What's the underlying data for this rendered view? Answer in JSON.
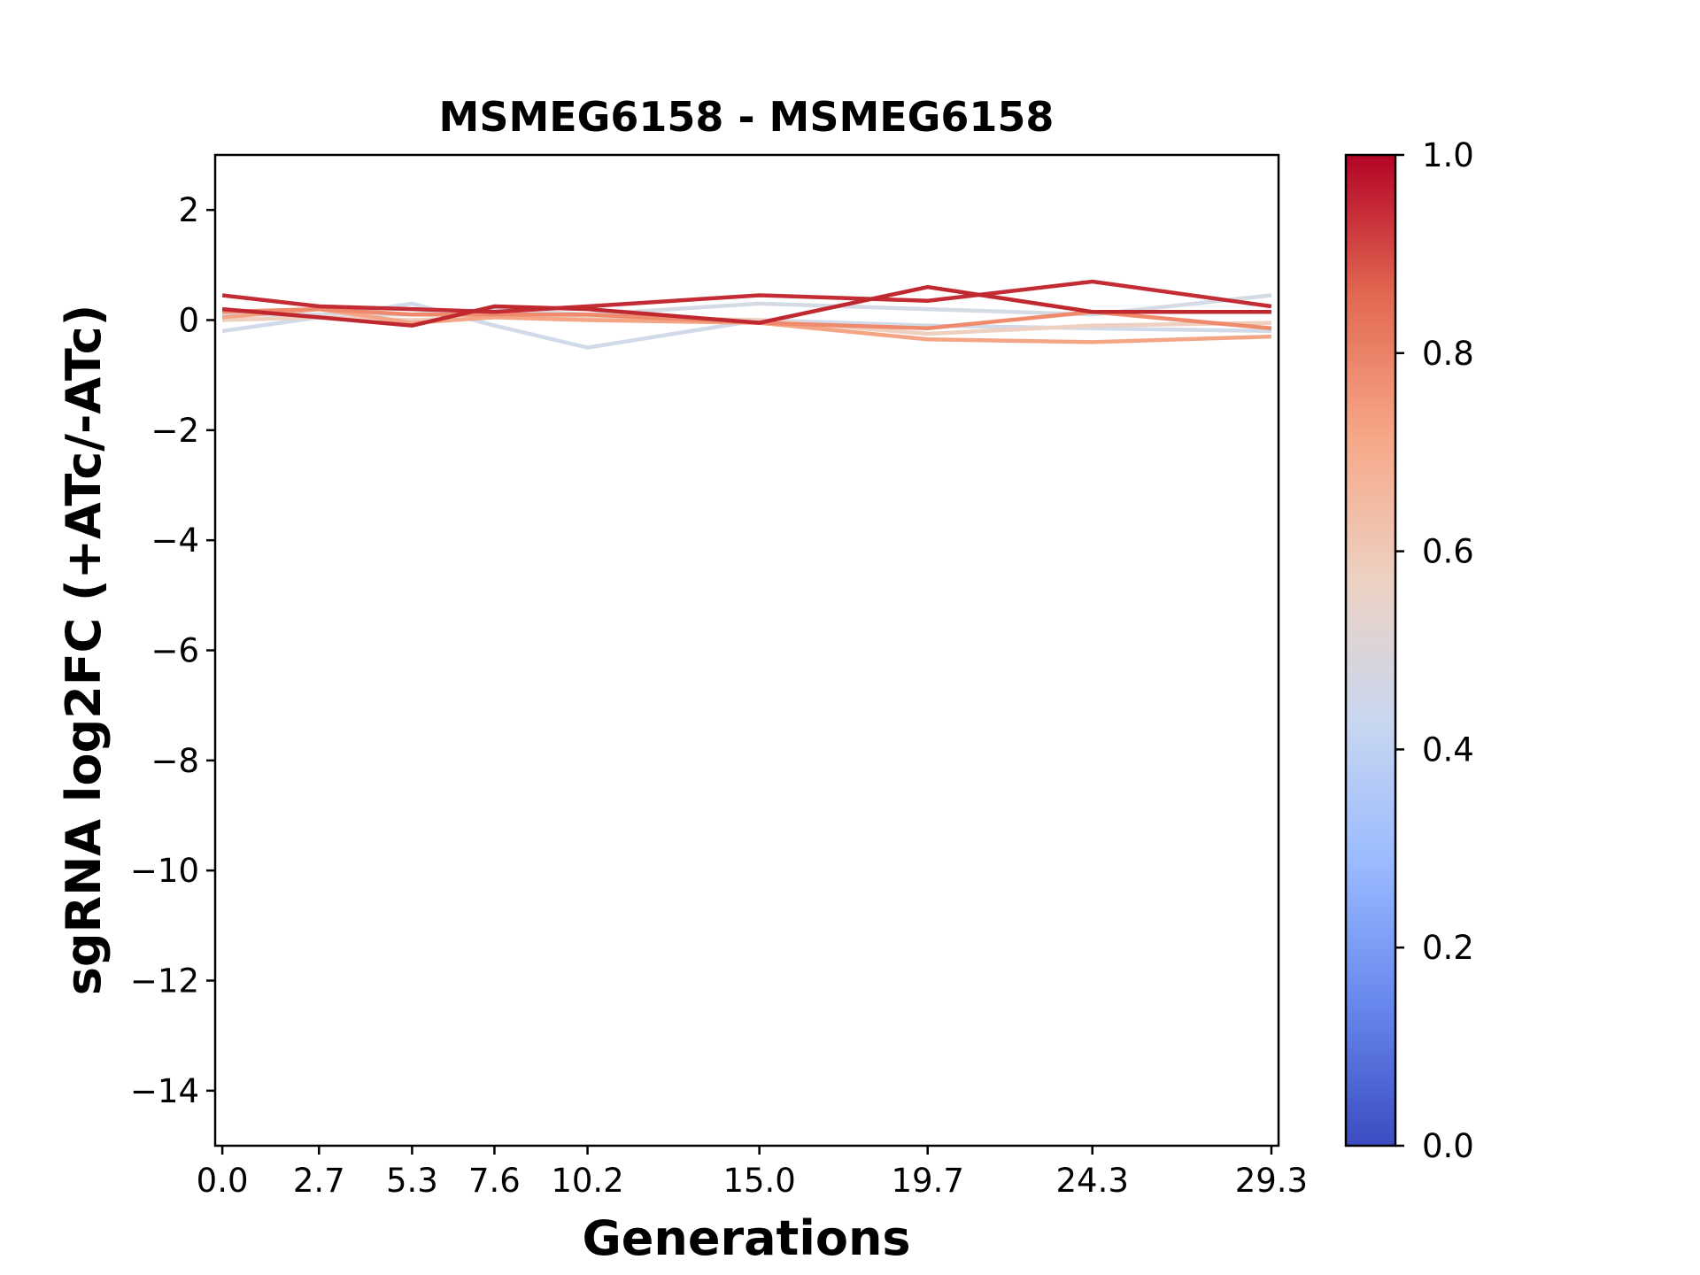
{
  "chart_data": {
    "type": "line",
    "title": "MSMEG6158 - MSMEG6158",
    "xlabel": "Generations",
    "ylabel": "sgRNA log2FC (+ATc/-ATc)",
    "x": [
      0.0,
      2.7,
      5.3,
      7.6,
      10.2,
      15.0,
      19.7,
      24.3,
      29.3
    ],
    "x_tick_labels": [
      "0.0",
      "2.7",
      "5.3",
      "7.6",
      "10.2",
      "15.0",
      "19.7",
      "24.3",
      "29.3"
    ],
    "xlim": [
      -0.2,
      29.5
    ],
    "ylim": [
      -15,
      3
    ],
    "y_ticks": [
      2,
      0,
      -2,
      -4,
      -6,
      -8,
      -10,
      -12,
      -14
    ],
    "y_tick_labels": [
      "2",
      "0",
      "−2",
      "−4",
      "−6",
      "−8",
      "−10",
      "−12",
      "−14"
    ],
    "grid": false,
    "colormap": "coolwarm",
    "colorbar": {
      "range": [
        0.0,
        1.0
      ],
      "ticks": [
        0.0,
        0.2,
        0.4,
        0.6,
        0.8,
        1.0
      ],
      "tick_labels": [
        "0.0",
        "0.2",
        "0.4",
        "0.6",
        "0.8",
        "1.0"
      ],
      "gradient": [
        "#3b4cc0",
        "#6788ee",
        "#9abbff",
        "#c9d7f0",
        "#edd1c2",
        "#f7a889",
        "#e26952",
        "#b40426"
      ]
    },
    "series": [
      {
        "color_value": 0.45,
        "color": "#d1dae9",
        "values": [
          -0.2,
          0.05,
          0.3,
          -0.1,
          -0.5,
          0.0,
          -0.1,
          -0.15,
          -0.2
        ]
      },
      {
        "color_value": 0.47,
        "color": "#d5dbe5",
        "values": [
          0.1,
          0.1,
          0.1,
          0.2,
          0.1,
          0.3,
          0.2,
          0.1,
          0.45
        ]
      },
      {
        "color_value": 0.6,
        "color": "#efcfbf",
        "values": [
          0.0,
          0.05,
          0.0,
          0.05,
          0.05,
          0.0,
          -0.25,
          -0.1,
          -0.05
        ]
      },
      {
        "color_value": 0.75,
        "color": "#f4a586",
        "values": [
          0.05,
          0.2,
          -0.05,
          0.05,
          0.0,
          -0.05,
          -0.35,
          -0.4,
          -0.3
        ]
      },
      {
        "color_value": 0.8,
        "color": "#ef8a6c",
        "values": [
          0.15,
          0.2,
          0.1,
          0.1,
          0.1,
          -0.05,
          -0.15,
          0.15,
          -0.15
        ]
      },
      {
        "color_value": 0.95,
        "color": "#c32c34",
        "values": [
          0.45,
          0.25,
          0.2,
          0.15,
          0.25,
          0.45,
          0.35,
          0.7,
          0.25
        ]
      },
      {
        "color_value": 0.96,
        "color": "#c0282f",
        "values": [
          0.2,
          0.05,
          -0.1,
          0.25,
          0.2,
          -0.05,
          0.6,
          0.15,
          0.15
        ]
      }
    ]
  }
}
